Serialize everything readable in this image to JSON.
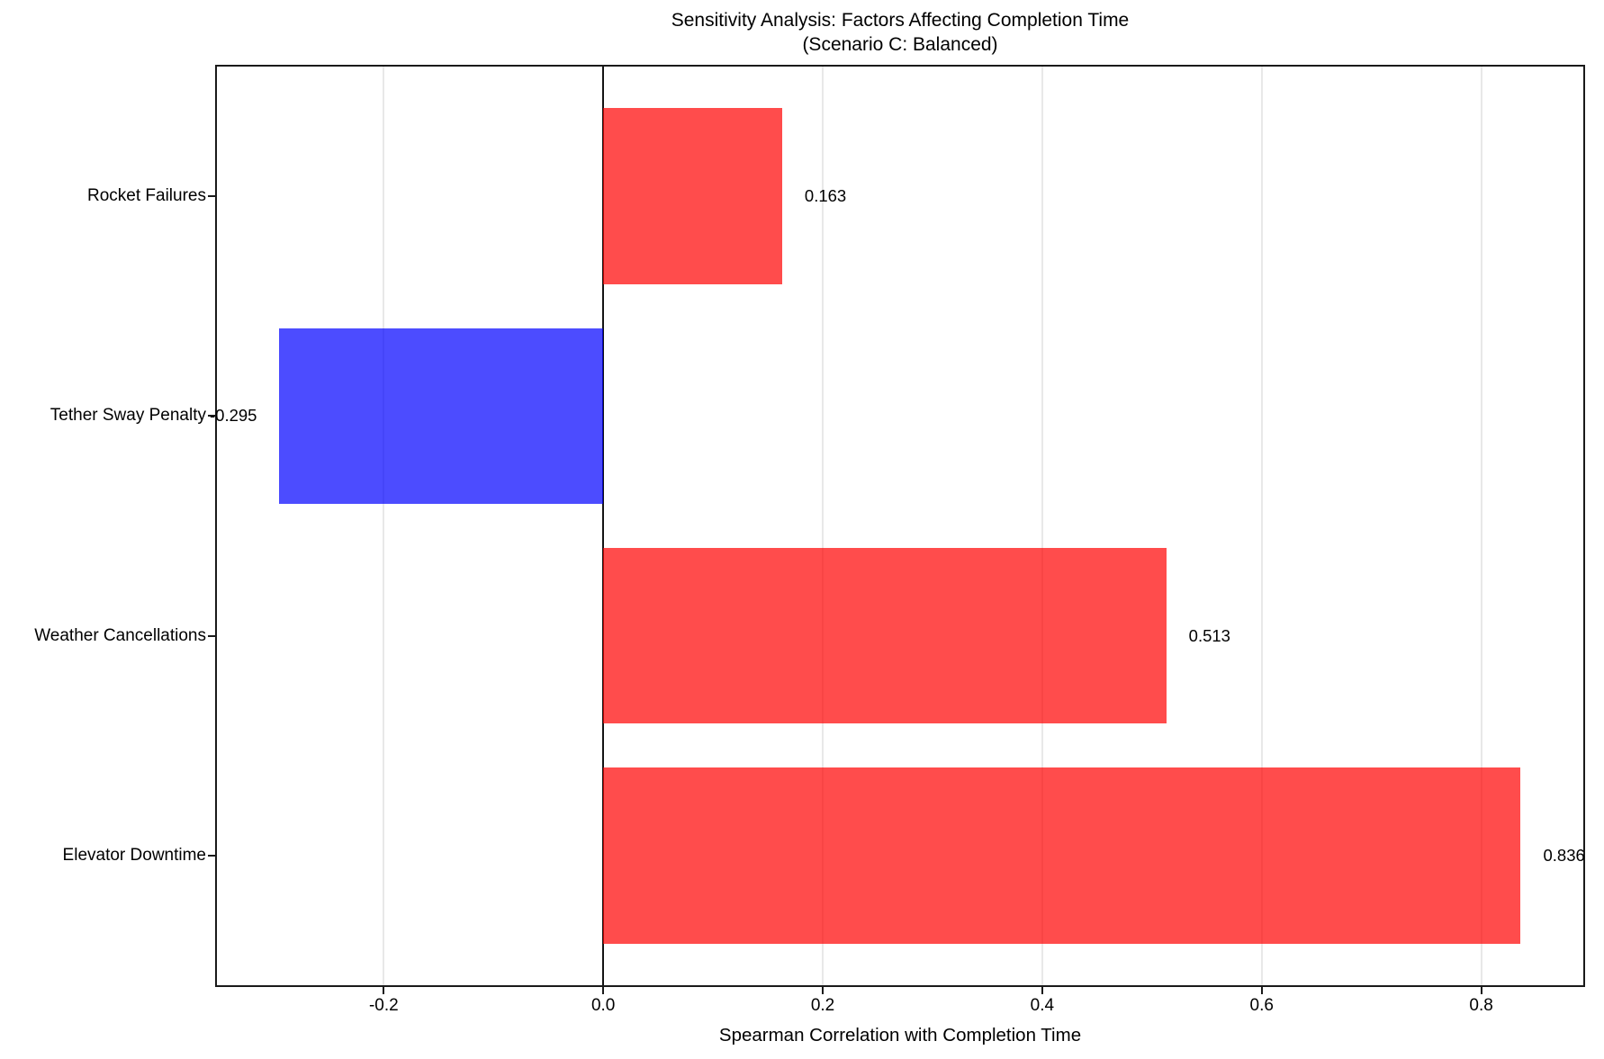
{
  "chart_data": {
    "type": "bar",
    "orientation": "horizontal",
    "title": "Sensitivity Analysis: Factors Affecting Completion Time",
    "subtitle": "(Scenario C: Balanced)",
    "xlabel": "Spearman Correlation with Completion Time",
    "ylabel": "",
    "categories": [
      "Rocket Failures",
      "Tether Sway Penalty",
      "Weather Cancellations",
      "Elevator Downtime"
    ],
    "values": [
      0.163,
      -0.295,
      0.513,
      0.836
    ],
    "value_labels": [
      "0.163",
      "-0.295",
      "0.513",
      "0.836"
    ],
    "positive_color": "rgba(255,0,0,0.7)",
    "negative_color": "rgba(0,0,255,0.7)",
    "positive_color_hex": "#ff4d4d",
    "negative_color_hex": "#4d4dff",
    "grid_color": "#e8e8e8",
    "spine_color": "#1a1a1a",
    "x_ticks": [
      -0.2,
      0.0,
      0.2,
      0.4,
      0.6,
      0.8
    ],
    "x_tick_labels": [
      "-0.2",
      "0.0",
      "0.2",
      "0.4",
      "0.6",
      "0.8"
    ],
    "xlim": [
      -0.352,
      0.893
    ],
    "ylim": [
      -0.59,
      3.59
    ],
    "bar_height_units": 0.8,
    "grid": "vertical-gridlines-x-only",
    "zero_line": true,
    "legend": "none"
  }
}
